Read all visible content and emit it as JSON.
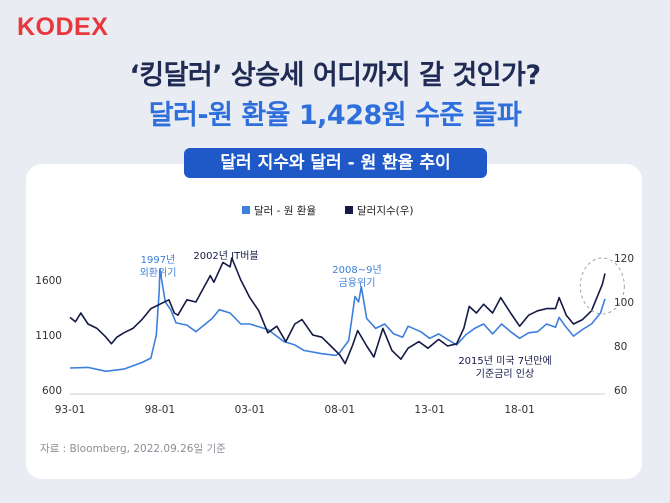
{
  "brand": {
    "logo": "KODEX"
  },
  "headline": {
    "line1": "‘킹달러’ 상승세 어디까지 갈 것인가?",
    "line2": "달러-원 환율 1,428원 수준 돌파"
  },
  "chart_title": "달러 지수와 달러  -  원 환율 추이",
  "colors": {
    "krw": "#3d7fdb",
    "dxy": "#141a46",
    "accent_red": "#e8383d",
    "navy": "#1f2b55",
    "blue": "#2f6fdc"
  },
  "chart_data": {
    "type": "line",
    "title": "달러 지수와 달러  -  원 환율 추이",
    "legend_position": "top-center",
    "grid": false,
    "x_range": [
      1993.0,
      2022.75
    ],
    "x_ticks": [
      "93-01",
      "98-01",
      "03-01",
      "08-01",
      "13-01",
      "18-01"
    ],
    "y_left": {
      "ylim": [
        600,
        1800
      ],
      "ticks": [
        "600",
        "1100",
        "1600"
      ]
    },
    "y_right": {
      "ylim": [
        60,
        120
      ],
      "ticks": [
        "60",
        "80",
        "100",
        "120"
      ]
    },
    "series": [
      {
        "name": "달러 - 원 환율",
        "axis": "left",
        "color": "#3d7fdb",
        "points": [
          [
            1993.0,
            800
          ],
          [
            1994.0,
            805
          ],
          [
            1995.0,
            770
          ],
          [
            1996.0,
            790
          ],
          [
            1997.0,
            850
          ],
          [
            1997.5,
            890
          ],
          [
            1997.8,
            1100
          ],
          [
            1997.96,
            1500
          ],
          [
            1998.0,
            1700
          ],
          [
            1998.1,
            1600
          ],
          [
            1998.3,
            1400
          ],
          [
            1998.6,
            1330
          ],
          [
            1998.9,
            1210
          ],
          [
            1999.5,
            1190
          ],
          [
            2000.0,
            1130
          ],
          [
            2000.9,
            1250
          ],
          [
            2001.3,
            1330
          ],
          [
            2001.9,
            1300
          ],
          [
            2002.5,
            1200
          ],
          [
            2003.0,
            1200
          ],
          [
            2004.0,
            1150
          ],
          [
            2004.9,
            1040
          ],
          [
            2005.5,
            1010
          ],
          [
            2006.0,
            960
          ],
          [
            2007.0,
            930
          ],
          [
            2007.8,
            915
          ],
          [
            2008.0,
            940
          ],
          [
            2008.5,
            1050
          ],
          [
            2008.85,
            1450
          ],
          [
            2009.05,
            1400
          ],
          [
            2009.2,
            1540
          ],
          [
            2009.5,
            1250
          ],
          [
            2010.0,
            1160
          ],
          [
            2010.5,
            1200
          ],
          [
            2011.0,
            1110
          ],
          [
            2011.5,
            1080
          ],
          [
            2011.8,
            1180
          ],
          [
            2012.5,
            1130
          ],
          [
            2013.0,
            1070
          ],
          [
            2013.5,
            1110
          ],
          [
            2014.0,
            1060
          ],
          [
            2014.5,
            1010
          ],
          [
            2015.0,
            1100
          ],
          [
            2015.5,
            1160
          ],
          [
            2016.0,
            1200
          ],
          [
            2016.5,
            1110
          ],
          [
            2017.0,
            1200
          ],
          [
            2017.5,
            1130
          ],
          [
            2018.0,
            1070
          ],
          [
            2018.5,
            1120
          ],
          [
            2019.0,
            1130
          ],
          [
            2019.5,
            1200
          ],
          [
            2020.0,
            1170
          ],
          [
            2020.2,
            1260
          ],
          [
            2020.5,
            1190
          ],
          [
            2021.0,
            1090
          ],
          [
            2021.5,
            1150
          ],
          [
            2022.0,
            1200
          ],
          [
            2022.5,
            1300
          ],
          [
            2022.75,
            1428
          ]
        ]
      },
      {
        "name": "달러지수(우)",
        "axis": "right",
        "color": "#141a46",
        "points": [
          [
            1993.0,
            93
          ],
          [
            1993.3,
            91
          ],
          [
            1993.6,
            95
          ],
          [
            1994.0,
            90
          ],
          [
            1994.5,
            88
          ],
          [
            1995.0,
            84
          ],
          [
            1995.3,
            81
          ],
          [
            1995.6,
            84
          ],
          [
            1996.0,
            86
          ],
          [
            1996.5,
            88
          ],
          [
            1997.0,
            92
          ],
          [
            1997.5,
            97
          ],
          [
            1998.0,
            99
          ],
          [
            1998.5,
            101
          ],
          [
            1998.8,
            95
          ],
          [
            1999.0,
            94
          ],
          [
            1999.5,
            101
          ],
          [
            2000.0,
            100
          ],
          [
            2000.4,
            106
          ],
          [
            2000.8,
            112
          ],
          [
            2001.0,
            109
          ],
          [
            2001.5,
            118
          ],
          [
            2001.9,
            116
          ],
          [
            2002.0,
            120
          ],
          [
            2002.5,
            110
          ],
          [
            2003.0,
            102
          ],
          [
            2003.5,
            96
          ],
          [
            2004.0,
            86
          ],
          [
            2004.5,
            89
          ],
          [
            2005.0,
            82
          ],
          [
            2005.5,
            90
          ],
          [
            2005.9,
            92
          ],
          [
            2006.5,
            85
          ],
          [
            2007.0,
            84
          ],
          [
            2007.5,
            80
          ],
          [
            2008.0,
            76
          ],
          [
            2008.3,
            72
          ],
          [
            2008.7,
            80
          ],
          [
            2009.0,
            87
          ],
          [
            2009.5,
            80
          ],
          [
            2009.9,
            75
          ],
          [
            2010.4,
            88
          ],
          [
            2010.9,
            78
          ],
          [
            2011.4,
            74
          ],
          [
            2011.8,
            79
          ],
          [
            2012.4,
            82
          ],
          [
            2012.9,
            79
          ],
          [
            2013.5,
            83
          ],
          [
            2014.0,
            80
          ],
          [
            2014.5,
            81
          ],
          [
            2014.9,
            88
          ],
          [
            2015.2,
            98
          ],
          [
            2015.6,
            95
          ],
          [
            2016.0,
            99
          ],
          [
            2016.5,
            95
          ],
          [
            2016.95,
            102
          ],
          [
            2017.5,
            95
          ],
          [
            2018.0,
            89
          ],
          [
            2018.5,
            94
          ],
          [
            2019.0,
            96
          ],
          [
            2019.5,
            97
          ],
          [
            2020.0,
            97
          ],
          [
            2020.2,
            102
          ],
          [
            2020.6,
            94
          ],
          [
            2021.0,
            90
          ],
          [
            2021.5,
            92
          ],
          [
            2022.0,
            96
          ],
          [
            2022.3,
            102
          ],
          [
            2022.6,
            108
          ],
          [
            2022.75,
            113
          ]
        ]
      }
    ],
    "annotations": [
      {
        "id": "a1997",
        "lines": [
          "1997년",
          "외환위기"
        ],
        "color": "#3d7fdb"
      },
      {
        "id": "a2002",
        "lines": [
          "2002년 IT버블"
        ],
        "color": "#141a46"
      },
      {
        "id": "a2008",
        "lines": [
          "2008~9년",
          "금융위기"
        ],
        "color": "#3d7fdb"
      },
      {
        "id": "a2015",
        "lines": [
          "2015년 미국 7년만에",
          "기준금리 인상"
        ],
        "color": "#141a46"
      }
    ]
  },
  "source": "자료 : Bloomberg, 2022.09.26일 기준"
}
